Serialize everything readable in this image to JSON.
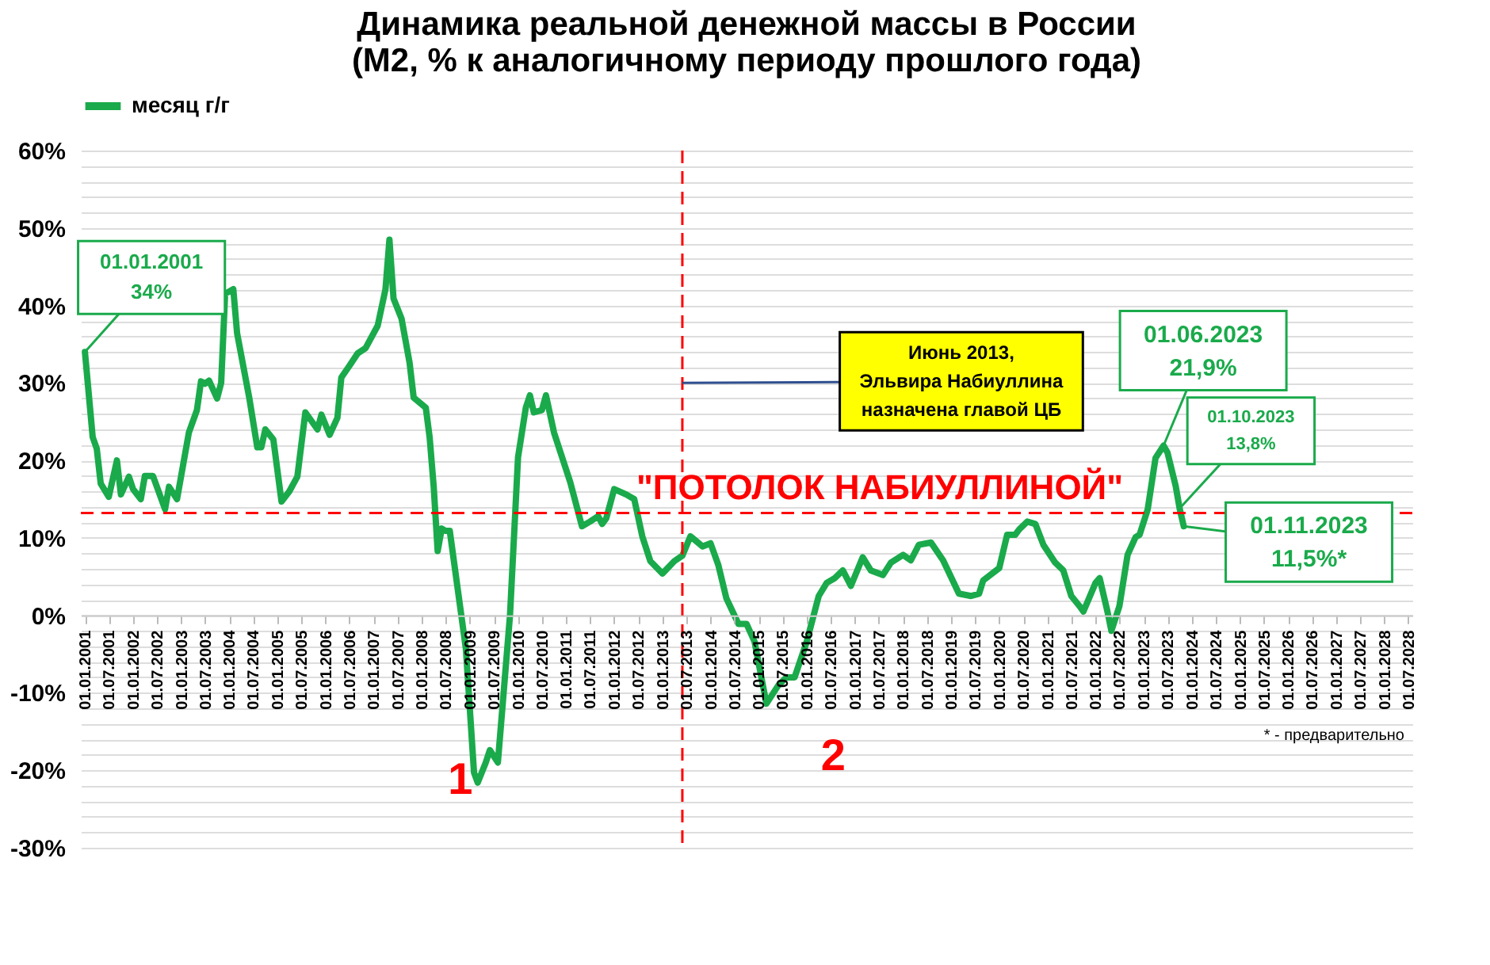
{
  "chart_data": {
    "type": "line",
    "title": "Динамика реальной денежной массы в России\n(М2, % к аналогичному периоду прошлого года)",
    "x": [
      "2001-01",
      "2001-03",
      "2001-04",
      "2001-05",
      "2001-07",
      "2001-09",
      "2001-10",
      "2001-12",
      "2002-01",
      "2002-03",
      "2002-04",
      "2002-06",
      "2002-09",
      "2002-10",
      "2002-12",
      "2003-03",
      "2003-05",
      "2003-06",
      "2003-07",
      "2003-08",
      "2003-10",
      "2003-11",
      "2003-12",
      "2004-02",
      "2004-03",
      "2004-06",
      "2004-08",
      "2004-09",
      "2004-10",
      "2004-12",
      "2005-02",
      "2005-04",
      "2005-06",
      "2005-08",
      "2005-11",
      "2005-12",
      "2006-02",
      "2006-04",
      "2006-05",
      "2006-07",
      "2006-09",
      "2006-11",
      "2007-02",
      "2007-04",
      "2007-05",
      "2007-06",
      "2007-08",
      "2007-10",
      "2007-11",
      "2008-02",
      "2008-03",
      "2008-04",
      "2008-05",
      "2008-06",
      "2008-07",
      "2008-08",
      "2008-12",
      "2009-02",
      "2009-03",
      "2009-05",
      "2009-06",
      "2009-08",
      "2009-09",
      "2009-11",
      "2010-01",
      "2010-03",
      "2010-04",
      "2010-05",
      "2010-07",
      "2010-08",
      "2010-10",
      "2011-02",
      "2011-05",
      "2011-07",
      "2011-09",
      "2011-10",
      "2011-11",
      "2012-01",
      "2012-04",
      "2012-06",
      "2012-08",
      "2012-10",
      "2013-01",
      "2013-04",
      "2013-06",
      "2013-08",
      "2013-11",
      "2014-01",
      "2014-03",
      "2014-05",
      "2014-08",
      "2014-10",
      "2014-12",
      "2015-03",
      "2015-06",
      "2015-08",
      "2015-10",
      "2016-01",
      "2016-04",
      "2016-06",
      "2016-08",
      "2016-10",
      "2016-12",
      "2017-03",
      "2017-05",
      "2017-08",
      "2017-10",
      "2018-01",
      "2018-03",
      "2018-05",
      "2018-08",
      "2018-11",
      "2019-03",
      "2019-06",
      "2019-08",
      "2019-09",
      "2020-01",
      "2020-03",
      "2020-05",
      "2020-06",
      "2020-08",
      "2020-10",
      "2020-12",
      "2021-03",
      "2021-05",
      "2021-07",
      "2021-09",
      "2021-10",
      "2022-01",
      "2022-02",
      "2022-04",
      "2022-05",
      "2022-07",
      "2022-09",
      "2022-11",
      "2022-12",
      "2023-02",
      "2023-04",
      "2023-06",
      "2023-07",
      "2023-09",
      "2023-10",
      "2023-11"
    ],
    "series": [
      {
        "name": "месяц г/г",
        "color": "#1aaa4b",
        "values": [
          34,
          23,
          21.5,
          17,
          15.3,
          20,
          15.6,
          17.9,
          16.3,
          15,
          18,
          18,
          13.7,
          16.6,
          15,
          23.6,
          26.5,
          30.2,
          29.9,
          30.3,
          28,
          30,
          41.5,
          42.1,
          36.4,
          28.1,
          21.7,
          21.7,
          24,
          22.7,
          14.7,
          16,
          17.9,
          26.2,
          24,
          25.9,
          23.3,
          25.5,
          30.7,
          32.2,
          33.8,
          34.5,
          37.4,
          42.1,
          48.5,
          40.9,
          38.3,
          32.6,
          28.1,
          26.8,
          23,
          16.6,
          8.3,
          11.2,
          10.9,
          10.9,
          -4.3,
          -20.3,
          -21.6,
          -19,
          -17.4,
          -19,
          -12.6,
          0,
          20.4,
          26.8,
          28.4,
          26.2,
          26.5,
          28.4,
          23.6,
          17.2,
          11.5,
          12.1,
          12.8,
          11.8,
          12.5,
          16.3,
          15.6,
          15,
          10.2,
          7,
          5.4,
          7,
          7.7,
          10.2,
          8.9,
          9.3,
          6.5,
          2.2,
          -1.1,
          -1.1,
          -3.4,
          -11.4,
          -9,
          -8,
          -8,
          -3.4,
          2.5,
          4.2,
          4.8,
          5.8,
          3.8,
          7.5,
          5.8,
          5.2,
          6.8,
          7.8,
          7.1,
          9.1,
          9.4,
          7.1,
          2.8,
          2.5,
          2.8,
          4.5,
          6.1,
          10.4,
          10.4,
          11.1,
          12.1,
          11.8,
          9.1,
          6.8,
          5.8,
          2.5,
          1.2,
          0.5,
          4.2,
          4.8,
          0.5,
          -2,
          1.2,
          7.8,
          10.1,
          10.4,
          13.7,
          20.3,
          21.9,
          21,
          16.7,
          13.8,
          11.5
        ]
      }
    ],
    "xlim": [
      "2000-12",
      "2028-08"
    ],
    "xticks": [
      {
        "value": "2001-01",
        "label": "01.01.2001"
      },
      {
        "value": "2001-07",
        "label": "01.07.2001"
      },
      {
        "value": "2002-01",
        "label": "01.01.2002"
      },
      {
        "value": "2002-07",
        "label": "01.07.2002"
      },
      {
        "value": "2003-01",
        "label": "01.01.2003"
      },
      {
        "value": "2003-07",
        "label": "01.07.2003"
      },
      {
        "value": "2004-01",
        "label": "01.01.2004"
      },
      {
        "value": "2004-07",
        "label": "01.07.2004"
      },
      {
        "value": "2005-01",
        "label": "01.01.2005"
      },
      {
        "value": "2005-07",
        "label": "01.07.2005"
      },
      {
        "value": "2006-01",
        "label": "01.01.2006"
      },
      {
        "value": "2006-07",
        "label": "01.07.2006"
      },
      {
        "value": "2007-01",
        "label": "01.01.2007"
      },
      {
        "value": "2007-07",
        "label": "01.07.2007"
      },
      {
        "value": "2008-01",
        "label": "01.01.2008"
      },
      {
        "value": "2008-07",
        "label": "01.07.2008"
      },
      {
        "value": "2009-01",
        "label": "01.01.2009"
      },
      {
        "value": "2009-07",
        "label": "01.07.2009"
      },
      {
        "value": "2010-01",
        "label": "01.01.2010"
      },
      {
        "value": "2010-07",
        "label": "01.07.2010"
      },
      {
        "value": "2011-01",
        "label": "01.01.2011"
      },
      {
        "value": "2011-07",
        "label": "01.07.2011"
      },
      {
        "value": "2012-01",
        "label": "01.01.2012"
      },
      {
        "value": "2012-07",
        "label": "01.07.2012"
      },
      {
        "value": "2013-01",
        "label": "01.01.2013"
      },
      {
        "value": "2013-07",
        "label": "01.07.2013"
      },
      {
        "value": "2014-01",
        "label": "01.01.2014"
      },
      {
        "value": "2014-07",
        "label": "01.07.2014"
      },
      {
        "value": "2015-01",
        "label": "01.01.2015"
      },
      {
        "value": "2015-07",
        "label": "01.07.2015"
      },
      {
        "value": "2016-01",
        "label": "01.01.2016"
      },
      {
        "value": "2016-07",
        "label": "01.07.2016"
      },
      {
        "value": "2017-01",
        "label": "01.01.2017"
      },
      {
        "value": "2017-07",
        "label": "01.07.2017"
      },
      {
        "value": "2018-01",
        "label": "01.01.2018"
      },
      {
        "value": "2018-07",
        "label": "01.07.2018"
      },
      {
        "value": "2019-01",
        "label": "01.01.2019"
      },
      {
        "value": "2019-07",
        "label": "01.07.2019"
      },
      {
        "value": "2020-01",
        "label": "01.01.2020"
      },
      {
        "value": "2020-07",
        "label": "01.07.2020"
      },
      {
        "value": "2021-01",
        "label": "01.01.2021"
      },
      {
        "value": "2021-07",
        "label": "01.07.2021"
      },
      {
        "value": "2022-01",
        "label": "01.01.2022"
      },
      {
        "value": "2022-07",
        "label": "01.07.2022"
      },
      {
        "value": "2023-01",
        "label": "01.01.2023"
      },
      {
        "value": "2023-07",
        "label": "01.07.2023"
      },
      {
        "value": "2024-01",
        "label": "01.01.2024"
      },
      {
        "value": "2024-07",
        "label": "01.07.2024"
      },
      {
        "value": "2025-01",
        "label": "01.01.2025"
      },
      {
        "value": "2025-07",
        "label": "01.07.2025"
      },
      {
        "value": "2026-01",
        "label": "01.01.2026"
      },
      {
        "value": "2026-07",
        "label": "01.07.2026"
      },
      {
        "value": "2027-01",
        "label": "01.01.2027"
      },
      {
        "value": "2027-07",
        "label": "01.07.2027"
      },
      {
        "value": "2028-01",
        "label": "01.01.2028"
      },
      {
        "value": "2028-07",
        "label": "01.07.2028"
      }
    ],
    "ylim": [
      -30,
      60
    ],
    "yticks": [
      {
        "value": -30,
        "label": "-30%"
      },
      {
        "value": -28,
        "label": null
      },
      {
        "value": -26,
        "label": null
      },
      {
        "value": -24,
        "label": null
      },
      {
        "value": -22,
        "label": null
      },
      {
        "value": -20,
        "label": "-20%"
      },
      {
        "value": -18,
        "label": null
      },
      {
        "value": -16,
        "label": null
      },
      {
        "value": -14,
        "label": null
      },
      {
        "value": -12,
        "label": null
      },
      {
        "value": -10,
        "label": "-10%"
      },
      {
        "value": -8,
        "label": null
      },
      {
        "value": -6,
        "label": null
      },
      {
        "value": -4,
        "label": null
      },
      {
        "value": -2,
        "label": null
      },
      {
        "value": 0,
        "label": "0%"
      },
      {
        "value": 2,
        "label": null
      },
      {
        "value": 4,
        "label": null
      },
      {
        "value": 6,
        "label": null
      },
      {
        "value": 8,
        "label": null
      },
      {
        "value": 10,
        "label": "10%"
      },
      {
        "value": 12,
        "label": null
      },
      {
        "value": 14,
        "label": null
      },
      {
        "value": 16,
        "label": null
      },
      {
        "value": 18,
        "label": null
      },
      {
        "value": 20,
        "label": "20%"
      },
      {
        "value": 22,
        "label": null
      },
      {
        "value": 24,
        "label": null
      },
      {
        "value": 26,
        "label": null
      },
      {
        "value": 28,
        "label": null
      },
      {
        "value": 30,
        "label": "30%"
      },
      {
        "value": 32,
        "label": null
      },
      {
        "value": 34,
        "label": null
      },
      {
        "value": 36,
        "label": null
      },
      {
        "value": 38,
        "label": null
      },
      {
        "value": 40,
        "label": "40%"
      },
      {
        "value": 42,
        "label": null
      },
      {
        "value": 44,
        "label": null
      },
      {
        "value": 46,
        "label": null
      },
      {
        "value": 48,
        "label": null
      },
      {
        "value": 50,
        "label": "50%"
      },
      {
        "value": 52,
        "label": null
      },
      {
        "value": 54,
        "label": null
      },
      {
        "value": 56,
        "label": null
      },
      {
        "value": 58,
        "label": null
      },
      {
        "value": 60,
        "label": "60%"
      }
    ],
    "grid": "y",
    "legend": "top",
    "line_style": "solid",
    "marker": "none",
    "ref_lines": [
      {
        "axis": "x",
        "value": "2013-06",
        "color": "#ff0000",
        "line_style": "dashed"
      },
      {
        "axis": "y",
        "value": 13.2,
        "label": "\"ПОТОЛОК НАБИУЛЛИНОЙ\"",
        "color": "#ff0000",
        "line_style": "dashed"
      }
    ],
    "annotations": [
      {
        "text": "01.01.2001\n34%",
        "x": "2001-01",
        "y": 34
      },
      {
        "text": "Июнь 2013,\nЭльвира Набиуллина\nназначена главой ЦБ",
        "x": "2013-06",
        "y": 30
      },
      {
        "text": "01.06.2023\n21,9%",
        "x": "2023-06",
        "y": 21.9
      },
      {
        "text": "01.10.2023\n13,8%",
        "x": "2023-10",
        "y": 13.8
      },
      {
        "text": "01.11.2023\n11,5%*",
        "x": "2023-11",
        "y": 11.5
      },
      "1",
      "2",
      "* - предварительно"
    ]
  }
}
